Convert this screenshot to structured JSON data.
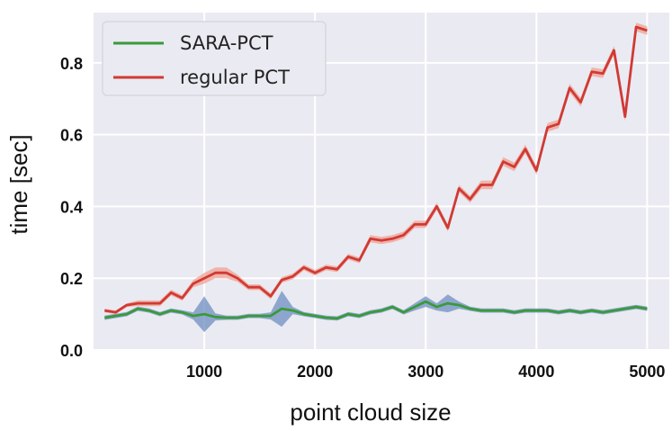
{
  "chart_data": {
    "type": "line",
    "title": "",
    "xlabel": "point cloud size",
    "ylabel": "time [sec]",
    "xlim": [
      0,
      5200
    ],
    "ylim": [
      0.0,
      0.94
    ],
    "xticks": [
      1000,
      2000,
      3000,
      4000,
      5000
    ],
    "yticks": [
      0.0,
      0.2,
      0.4,
      0.6,
      0.8
    ],
    "xtick_labels": [
      "1000",
      "2000",
      "3000",
      "4000",
      "5000"
    ],
    "ytick_labels": [
      "0.0",
      "0.2",
      "0.4",
      "0.6",
      "0.8"
    ],
    "grid": true,
    "legend_position": "top-left",
    "x": [
      100,
      200,
      300,
      400,
      500,
      600,
      700,
      800,
      900,
      1000,
      1100,
      1200,
      1300,
      1400,
      1500,
      1600,
      1700,
      1800,
      1900,
      2000,
      2100,
      2200,
      2300,
      2400,
      2500,
      2600,
      2700,
      2800,
      2900,
      3000,
      3100,
      3200,
      3300,
      3400,
      3500,
      3600,
      3700,
      3800,
      3900,
      4000,
      4100,
      4200,
      4300,
      4400,
      4500,
      4600,
      4700,
      4800,
      4900,
      5000
    ],
    "series": [
      {
        "name": "SARA-PCT",
        "color": "#3a9a3a",
        "band_color": "#6f8fc0",
        "values": [
          0.09,
          0.095,
          0.1,
          0.115,
          0.11,
          0.1,
          0.11,
          0.105,
          0.095,
          0.1,
          0.092,
          0.09,
          0.09,
          0.095,
          0.095,
          0.095,
          0.115,
          0.11,
          0.1,
          0.095,
          0.09,
          0.088,
          0.1,
          0.095,
          0.105,
          0.11,
          0.12,
          0.105,
          0.12,
          0.135,
          0.12,
          0.13,
          0.125,
          0.115,
          0.11,
          0.11,
          0.11,
          0.105,
          0.11,
          0.11,
          0.11,
          0.105,
          0.11,
          0.105,
          0.11,
          0.105,
          0.11,
          0.115,
          0.12,
          0.115
        ],
        "band": [
          0.006,
          0.006,
          0.006,
          0.006,
          0.006,
          0.006,
          0.006,
          0.006,
          0.01,
          0.05,
          0.01,
          0.006,
          0.006,
          0.006,
          0.006,
          0.01,
          0.05,
          0.01,
          0.006,
          0.006,
          0.006,
          0.006,
          0.006,
          0.006,
          0.006,
          0.006,
          0.006,
          0.006,
          0.01,
          0.015,
          0.01,
          0.025,
          0.01,
          0.006,
          0.006,
          0.006,
          0.006,
          0.006,
          0.006,
          0.006,
          0.006,
          0.006,
          0.006,
          0.006,
          0.006,
          0.006,
          0.006,
          0.006,
          0.006,
          0.006
        ]
      },
      {
        "name": "regular PCT",
        "color": "#d03a34",
        "band_color": "#f0a090",
        "values": [
          0.11,
          0.105,
          0.125,
          0.13,
          0.13,
          0.13,
          0.16,
          0.145,
          0.185,
          0.2,
          0.215,
          0.215,
          0.2,
          0.175,
          0.175,
          0.15,
          0.195,
          0.205,
          0.23,
          0.215,
          0.23,
          0.225,
          0.26,
          0.25,
          0.31,
          0.305,
          0.31,
          0.32,
          0.35,
          0.35,
          0.4,
          0.34,
          0.45,
          0.42,
          0.46,
          0.46,
          0.525,
          0.51,
          0.56,
          0.5,
          0.62,
          0.63,
          0.73,
          0.69,
          0.775,
          0.77,
          0.835,
          0.65,
          0.9,
          0.89
        ],
        "band": [
          0.005,
          0.005,
          0.005,
          0.008,
          0.008,
          0.008,
          0.008,
          0.008,
          0.01,
          0.015,
          0.015,
          0.015,
          0.01,
          0.008,
          0.008,
          0.008,
          0.008,
          0.008,
          0.008,
          0.008,
          0.008,
          0.008,
          0.008,
          0.008,
          0.01,
          0.01,
          0.01,
          0.01,
          0.01,
          0.01,
          0.01,
          0.01,
          0.01,
          0.01,
          0.012,
          0.012,
          0.012,
          0.012,
          0.012,
          0.012,
          0.012,
          0.012,
          0.012,
          0.012,
          0.012,
          0.012,
          0.012,
          0.012,
          0.012,
          0.012
        ]
      }
    ]
  }
}
